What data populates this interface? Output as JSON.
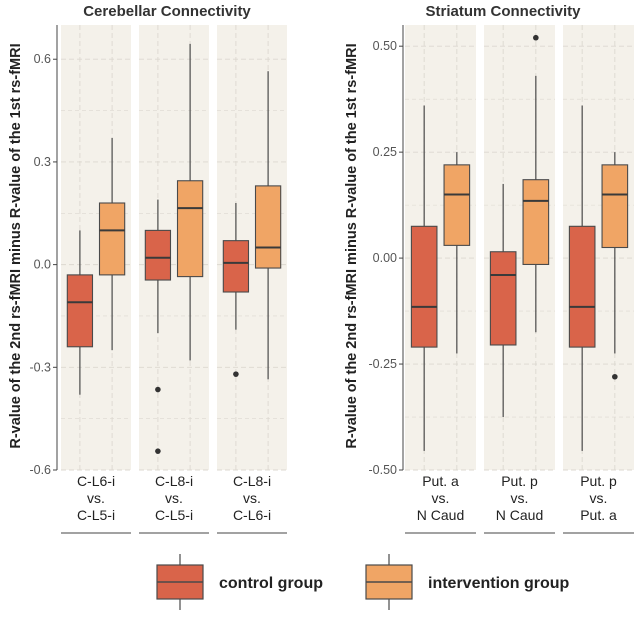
{
  "chart_data": [
    {
      "type": "boxplot",
      "title": "Cerebellar Connectivity",
      "ylabel": "R-value of the 2nd rs-fMRI minus R-value of the 1st rs-fMRI",
      "ylim": [
        -0.6,
        0.7
      ],
      "yticks": [
        -0.6,
        -0.3,
        0.0,
        0.3,
        0.6
      ],
      "ytick_labels": [
        "-0.6",
        "-0.3",
        "0.0",
        "0.3",
        "0.6"
      ],
      "facets": [
        {
          "label_lines": [
            "C-L6-i",
            "vs.",
            "C-L5-i"
          ],
          "boxes": [
            {
              "group": "control group",
              "whisker_low": -0.38,
              "q1": -0.24,
              "median": -0.11,
              "q3": -0.03,
              "whisker_high": 0.1,
              "outliers": []
            },
            {
              "group": "intervention group",
              "whisker_low": -0.25,
              "q1": -0.03,
              "median": 0.1,
              "q3": 0.18,
              "whisker_high": 0.37,
              "outliers": []
            }
          ]
        },
        {
          "label_lines": [
            "C-L8-i",
            "vs.",
            "C-L5-i"
          ],
          "boxes": [
            {
              "group": "control group",
              "whisker_low": -0.2,
              "q1": -0.045,
              "median": 0.02,
              "q3": 0.1,
              "whisker_high": 0.19,
              "outliers": [
                -0.365,
                -0.545
              ]
            },
            {
              "group": "intervention group",
              "whisker_low": -0.28,
              "q1": -0.035,
              "median": 0.165,
              "q3": 0.245,
              "whisker_high": 0.645,
              "outliers": []
            }
          ]
        },
        {
          "label_lines": [
            "C-L8-i",
            "vs.",
            "C-L6-i"
          ],
          "boxes": [
            {
              "group": "control group",
              "whisker_low": -0.19,
              "q1": -0.08,
              "median": 0.005,
              "q3": 0.07,
              "whisker_high": 0.18,
              "outliers": [
                -0.32
              ]
            },
            {
              "group": "intervention group",
              "whisker_low": -0.335,
              "q1": -0.01,
              "median": 0.05,
              "q3": 0.23,
              "whisker_high": 0.565,
              "outliers": []
            }
          ]
        }
      ]
    },
    {
      "type": "boxplot",
      "title": "Striatum Connectivity",
      "ylabel": "R-value of the 2nd rs-fMRI minus R-value of the 1st rs-fMRI",
      "ylim": [
        -0.5,
        0.55
      ],
      "yticks": [
        -0.5,
        -0.25,
        0.0,
        0.25,
        0.5
      ],
      "ytick_labels": [
        "-0.50",
        "-0.25",
        "0.00",
        "0.25",
        "0.50"
      ],
      "facets": [
        {
          "label_lines": [
            "Put. a",
            "vs.",
            "N Caud"
          ],
          "boxes": [
            {
              "group": "control group",
              "whisker_low": -0.455,
              "q1": -0.21,
              "median": -0.115,
              "q3": 0.075,
              "whisker_high": 0.36,
              "outliers": []
            },
            {
              "group": "intervention group",
              "whisker_low": -0.225,
              "q1": 0.03,
              "median": 0.15,
              "q3": 0.22,
              "whisker_high": 0.25,
              "outliers": []
            }
          ]
        },
        {
          "label_lines": [
            "Put. p",
            "vs.",
            "N Caud"
          ],
          "boxes": [
            {
              "group": "control group",
              "whisker_low": -0.375,
              "q1": -0.205,
              "median": -0.04,
              "q3": 0.015,
              "whisker_high": 0.175,
              "outliers": []
            },
            {
              "group": "intervention group",
              "whisker_low": -0.175,
              "q1": -0.015,
              "median": 0.135,
              "q3": 0.185,
              "whisker_high": 0.43,
              "outliers": [
                0.52
              ]
            }
          ]
        },
        {
          "label_lines": [
            "Put. p",
            "vs.",
            "Put. a"
          ],
          "boxes": [
            {
              "group": "control group",
              "whisker_low": -0.455,
              "q1": -0.21,
              "median": -0.115,
              "q3": 0.075,
              "whisker_high": 0.36,
              "outliers": []
            },
            {
              "group": "intervention group",
              "whisker_low": -0.225,
              "q1": 0.025,
              "median": 0.15,
              "q3": 0.22,
              "whisker_high": 0.25,
              "outliers": [
                -0.28
              ]
            }
          ]
        }
      ]
    }
  ],
  "legend": {
    "items": [
      {
        "label": "control group",
        "color": "#d9644a"
      },
      {
        "label": "intervention group",
        "color": "#f0a565"
      }
    ]
  },
  "colors": {
    "panel_bg": "#f4f1ea",
    "grid": "#dcd8d0",
    "line": "#4a4a4a",
    "outlier": "#333333"
  }
}
